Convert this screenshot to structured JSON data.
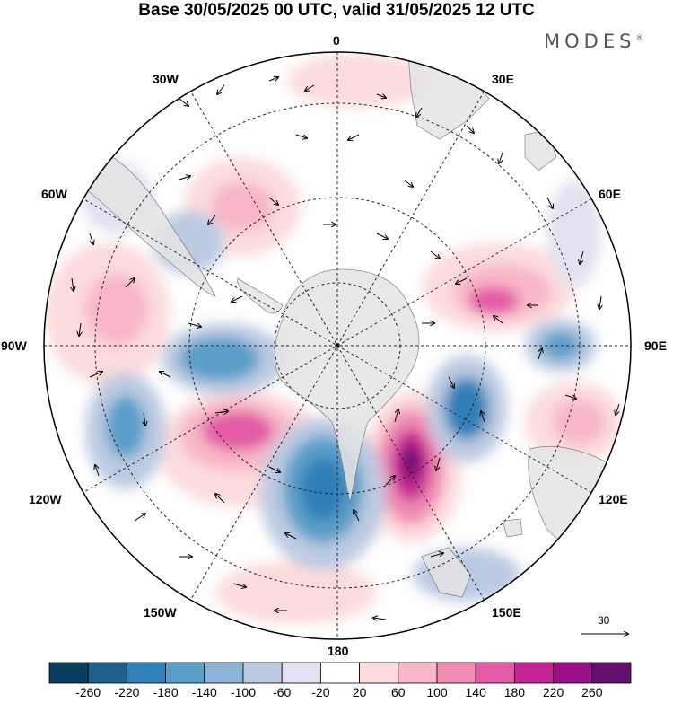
{
  "title": "Base 30/05/2025 00 UTC, valid 31/05/2025 12 UTC",
  "brand": "MODES",
  "brand_mark": "®",
  "map": {
    "projection": "south polar stereographic",
    "longitude_labels": {
      "lon_0": "0",
      "lon_30E": "30E",
      "lon_60E": "60E",
      "lon_90E": "90E",
      "lon_120E": "120E",
      "lon_150E": "150E",
      "lon_180": "180",
      "lon_150W": "150W",
      "lon_120W": "120W",
      "lon_90W": "90W",
      "lon_60W": "60W",
      "lon_30W": "30W"
    },
    "vector_reference_value": "30",
    "colors": {
      "land": "#e4e4e4",
      "coast": "#7a7a7a",
      "grid": "#222222"
    }
  },
  "colorbar": {
    "colors": [
      "#0b3d5e",
      "#1f5f8b",
      "#2f7fb8",
      "#5a9ec9",
      "#8db3d6",
      "#bccbe2",
      "#e2e2f0",
      "#ffffff",
      "#fcdcdc",
      "#f8b6c8",
      "#f08cb4",
      "#e35aa6",
      "#c42393",
      "#9a0f86",
      "#64106f"
    ],
    "labels": [
      "-260",
      "-220",
      "-180",
      "-140",
      "-100",
      "-60",
      "-20",
      "20",
      "60",
      "100",
      "140",
      "180",
      "220",
      "260"
    ]
  }
}
